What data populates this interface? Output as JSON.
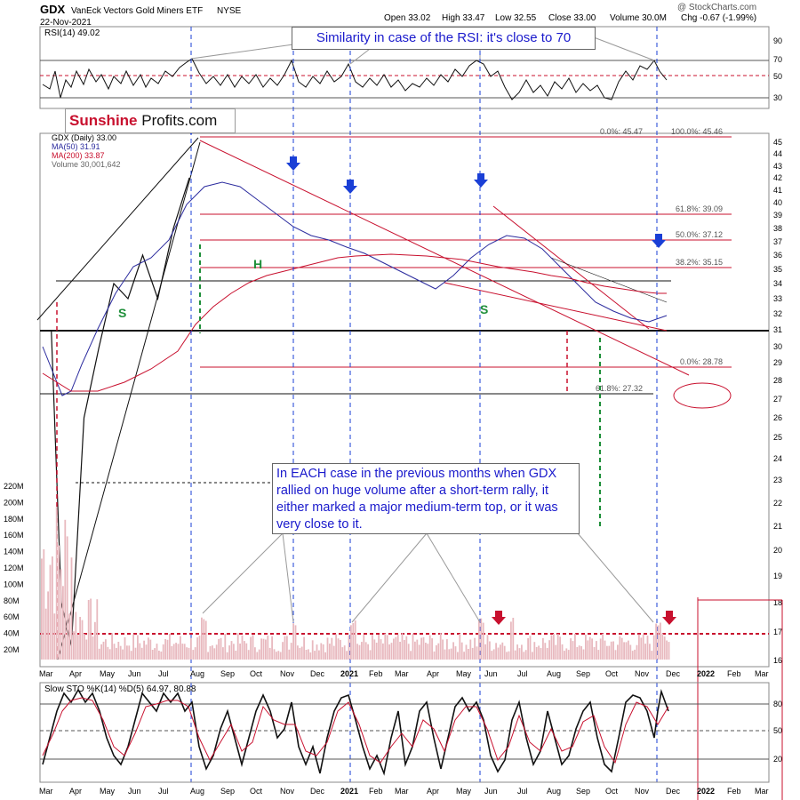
{
  "header": {
    "symbol": "GDX",
    "name": "VanEck Vectors Gold Miners ETF",
    "exchange": "NYSE",
    "date": "22-Nov-2021",
    "open": "Open 33.02",
    "high": "High 33.47",
    "low": "Low 32.55",
    "close": "Close 33.00",
    "volume": "Volume 30.0M",
    "chg": "Chg -0.67 (-1.99%)",
    "watermark": "@ StockCharts.com"
  },
  "logo": {
    "part1": "Sunshine",
    "part2": "Profits.com"
  },
  "callouts": {
    "rsi_note": "Similarity in case of the RSI: it's close to 70",
    "volume_note": "In EACH case in the previous months when GDX rallied on huge volume after a short-term rally, it either marked a major medium-term top, or it was very close to it."
  },
  "legend": {
    "price": "GDX (Daily) 33.00",
    "ma50": "MA(50) 31.91",
    "ma200": "MA(200) 33.87",
    "volume": "Volume 30,001,642",
    "rsi": "RSI(14) 49.02",
    "sto": "Slow STO %K(14) %D(5) 64.97, 80.88"
  },
  "colors": {
    "price_up": "#111111",
    "price_down": "#c8102e",
    "ma50": "#2b2b9e",
    "ma200": "#c8102e",
    "arrow_blue": "#1a3fd6",
    "arrow_red": "#c8102e",
    "pattern_green": "#1f8f3a",
    "volume_bar": "#e8b9bf"
  },
  "chart_data": {
    "type": "line",
    "title": "GDX VanEck Vectors Gold Miners ETF NYSE",
    "x_axis_labels": [
      "Mar",
      "Apr",
      "May",
      "Jun",
      "Jul",
      "Aug",
      "Sep",
      "Oct",
      "Nov",
      "Dec",
      "2021",
      "Feb",
      "Mar",
      "Apr",
      "May",
      "Jun",
      "Jul",
      "Aug",
      "Sep",
      "Oct",
      "Nov",
      "Dec",
      "2022",
      "Feb",
      "Mar"
    ],
    "price_axis": [
      16,
      17,
      18,
      19,
      20,
      21,
      22,
      23,
      24,
      25,
      26,
      27,
      28,
      29,
      30,
      31,
      32,
      33,
      34,
      35,
      36,
      37,
      38,
      39,
      40,
      41,
      42,
      43,
      44,
      45
    ],
    "volume_axis": [
      "20M",
      "40M",
      "60M",
      "80M",
      "100M",
      "120M",
      "140M",
      "160M",
      "180M",
      "200M",
      "220M"
    ],
    "rsi_axis": [
      30,
      50,
      70,
      90
    ],
    "sto_axis": [
      20,
      50,
      80
    ],
    "price_series": {
      "name": "GDX (Daily)",
      "points": [
        [
          "Mar 2020",
          31
        ],
        [
          "Mar 2020",
          18
        ],
        [
          "Mar 2020",
          16.5
        ],
        [
          "Apr 2020",
          26
        ],
        [
          "Apr 2020",
          30
        ],
        [
          "May 2020",
          34
        ],
        [
          "May 2020",
          33
        ],
        [
          "Jun 2020",
          36
        ],
        [
          "Jun 2020",
          33
        ],
        [
          "Jul 2020",
          38
        ],
        [
          "Jul 2020",
          42
        ],
        [
          "Aug 2020",
          45.5
        ],
        [
          "Aug 2020",
          41
        ],
        [
          "Sep 2020",
          43
        ],
        [
          "Sep 2020",
          39.5
        ],
        [
          "Oct 2020",
          40
        ],
        [
          "Oct 2020",
          37
        ],
        [
          "Nov 2020",
          42
        ],
        [
          "Nov 2020",
          35.5
        ],
        [
          "Dec 2020",
          35
        ],
        [
          "Dec 2020",
          36.5
        ],
        [
          "Jan 2021",
          38.5
        ],
        [
          "Jan 2021",
          36
        ],
        [
          "Feb 2021",
          34.5
        ],
        [
          "Mar 2021",
          31
        ],
        [
          "Mar 2021",
          32.5
        ],
        [
          "Apr 2021",
          34.5
        ],
        [
          "May 2021",
          37
        ],
        [
          "May 2021",
          40
        ],
        [
          "Jun 2021",
          38
        ],
        [
          "Jun 2021",
          35
        ],
        [
          "Jul 2021",
          34
        ],
        [
          "Aug 2021",
          33
        ],
        [
          "Aug 2021",
          31.5
        ],
        [
          "Sep 2021",
          32
        ],
        [
          "Sep 2021",
          29
        ],
        [
          "Oct 2021",
          31
        ],
        [
          "Oct 2021",
          33
        ],
        [
          "Nov 2021",
          35
        ],
        [
          "Nov 2021",
          33
        ]
      ]
    },
    "ma50_series": {
      "name": "MA(50)",
      "last": 31.91
    },
    "ma200_series": {
      "name": "MA(200)",
      "last": 33.87
    },
    "fibonacci_levels": [
      {
        "label": "0.0%: 45.47",
        "value": 45.47
      },
      {
        "label": "100.0%: 45.46",
        "value": 45.46
      },
      {
        "label": "61.8%: 39.09",
        "value": 39.09
      },
      {
        "label": "50.0%: 37.12",
        "value": 37.12
      },
      {
        "label": "38.2%: 35.15",
        "value": 35.15
      },
      {
        "label": "0.0%: 28.78",
        "value": 28.78
      },
      {
        "label": "61.8%: 27.32",
        "value": 27.32
      }
    ],
    "horizontal_levels": [
      31,
      34.25
    ],
    "pattern_labels": [
      "S",
      "H",
      "S"
    ],
    "rsi_last": 49.02,
    "sto_k_last": 64.97,
    "sto_d_last": 80.88,
    "volume_last": "30,001,642"
  }
}
